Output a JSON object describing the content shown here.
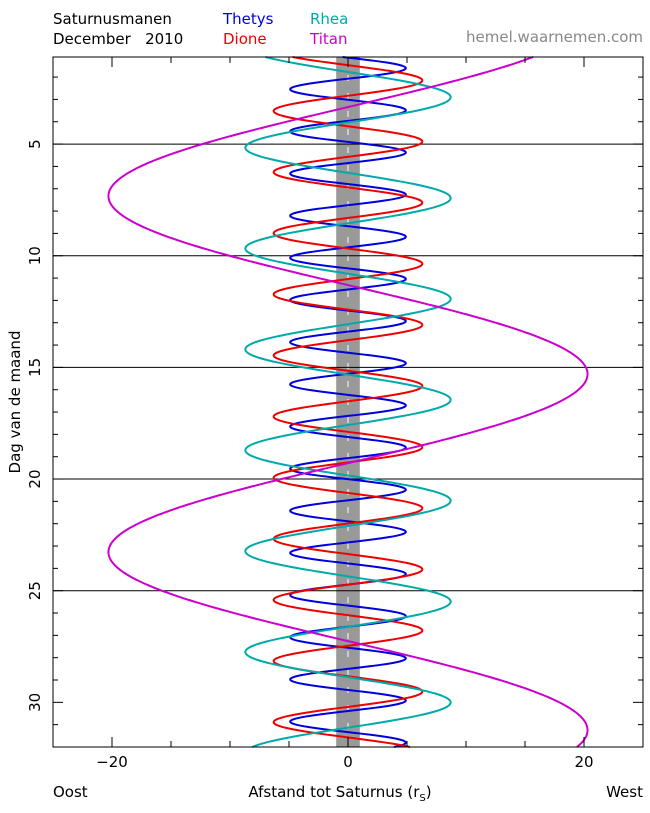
{
  "header": {
    "title_line1": "Saturnusmanen",
    "title_line2": "December   2010",
    "website": "hemel.waarnemen.com"
  },
  "legend": [
    {
      "name": "Thetys",
      "color": "#0000dd"
    },
    {
      "name": "Dione",
      "color": "#ee0000"
    },
    {
      "name": "Rhea",
      "color": "#00aaaa"
    },
    {
      "name": "Titan",
      "color": "#cc00cc"
    }
  ],
  "footer": {
    "left": "Oost",
    "right": "West",
    "xlabel": "Afstand tot Saturnus (r",
    "xlabel_sub": "S",
    "xlabel_close": ")"
  },
  "chart_data": {
    "type": "line",
    "title": "Saturnusmanen December 2010",
    "xlabel": "Afstand tot Saturnus (rS)",
    "ylabel": "Dag van de maand",
    "xlim": [
      -25,
      25
    ],
    "ylim": [
      1.1,
      32
    ],
    "y_inverted": true,
    "x_ticks": [
      -20,
      0,
      20
    ],
    "y_ticks": [
      5,
      10,
      15,
      20,
      25,
      30
    ],
    "horizontal_lines": [
      5,
      10,
      15,
      20,
      25
    ],
    "saturn_band": {
      "half_width": 1,
      "color": "#999999"
    },
    "series": [
      {
        "name": "Thetys",
        "color": "#0000dd",
        "amplitude": 4.9,
        "period_days": 1.8878,
        "phase_day": 1.6
      },
      {
        "name": "Dione",
        "color": "#ee0000",
        "amplitude": 6.3,
        "period_days": 2.7369,
        "phase_day": 2.15
      },
      {
        "name": "Rhea",
        "color": "#00aaaa",
        "amplitude": 8.7,
        "period_days": 4.5175,
        "phase_day": 2.9
      },
      {
        "name": "Titan",
        "color": "#cc00cc",
        "amplitude": 20.3,
        "period_days": 15.945,
        "phase_day": 15.3
      }
    ],
    "annotations": {
      "left": "Oost",
      "right": "West",
      "credit": "hemel.waarnemen.com"
    }
  }
}
